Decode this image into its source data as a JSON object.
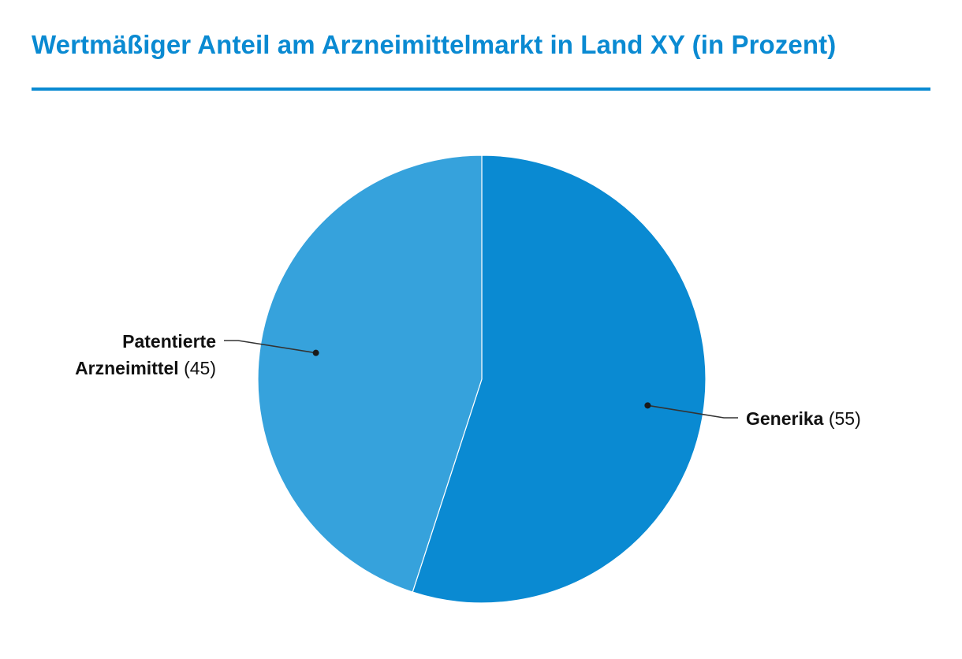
{
  "title": "Wertmäßiger Anteil am Arzneimittelmarkt in Land XY (in Prozent)",
  "colors": {
    "accent": "#0a8ad2",
    "generika": "#0a8ad2",
    "patentierte": "#36a2dc"
  },
  "chart_data": {
    "type": "pie",
    "title": "Wertmäßiger Anteil am Arzneimittelmarkt in Land XY (in Prozent)",
    "start": "12 o'clock",
    "direction": "clockwise",
    "slices": [
      {
        "label": "Generika",
        "label_lines": [
          "Generika"
        ],
        "value": 55,
        "value_text": "(55)",
        "color": "#0a8ad2"
      },
      {
        "label": "Patentierte Arzneimittel",
        "label_lines": [
          "Patentierte",
          "Arzneimittel"
        ],
        "value": 45,
        "value_text": "(45)",
        "color": "#36a2dc"
      }
    ],
    "label_placement": "outside with leader lines"
  }
}
